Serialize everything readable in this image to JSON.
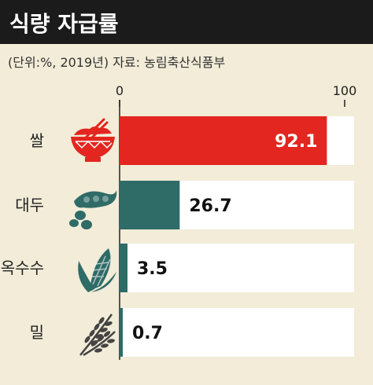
{
  "header": {
    "title": "식량 자급률"
  },
  "subtitle": "(단위:%, 2019년)  자료: 농림축산식품부",
  "colors": {
    "header_bg": "#1b1b1b",
    "background": "#f2ecd8",
    "bar_track": "#ffffff",
    "rice": "#e3261f",
    "others": "#2f6b67",
    "icon_rice": "#e3261f",
    "icon_soy": "#2f6b67",
    "icon_corn": "#2f6b67",
    "icon_wheat": "#444444"
  },
  "chart_data": {
    "type": "bar",
    "orientation": "horizontal",
    "categories": [
      "쌀",
      "대두",
      "옥수수",
      "밀"
    ],
    "values": [
      92.1,
      26.7,
      3.5,
      0.7
    ],
    "value_labels": [
      "92.1",
      "26.7",
      "3.5",
      "0.7"
    ],
    "xlim": [
      0,
      100
    ],
    "xticks": [
      "0",
      "100"
    ],
    "bar_colors": [
      "#e3261f",
      "#2f6b67",
      "#2f6b67",
      "#2f6b67"
    ],
    "icons": [
      "rice-bowl-icon",
      "soybean-icon",
      "corn-icon",
      "wheat-icon"
    ],
    "grid": false,
    "legend": "none"
  }
}
